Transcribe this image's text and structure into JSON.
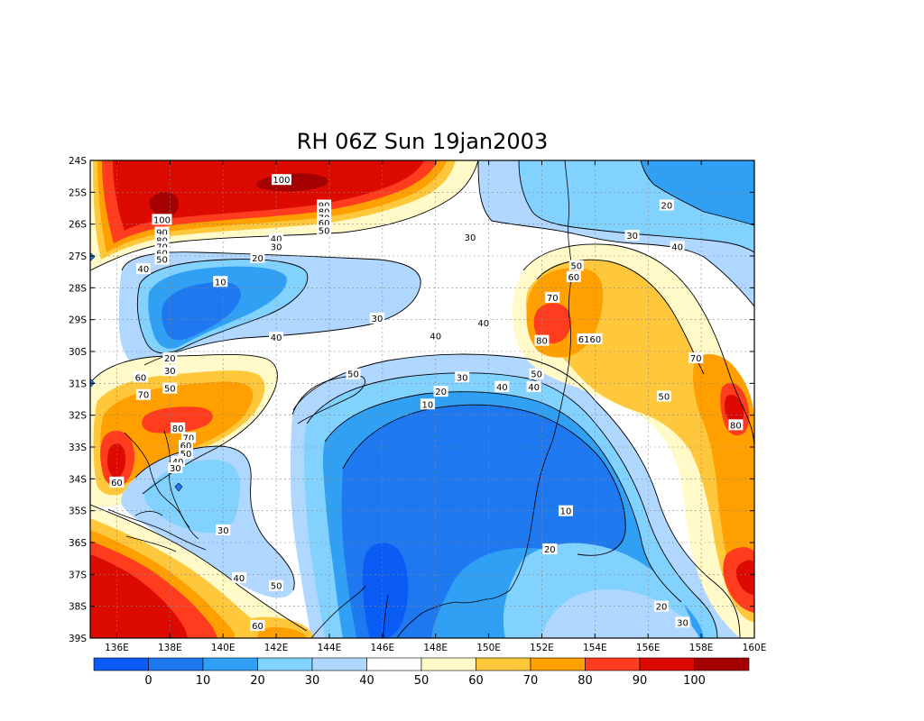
{
  "chart_data": {
    "type": "heatmap",
    "title": "RH 06Z Sun 19jan2003",
    "x_ticks": [
      "136E",
      "138E",
      "140E",
      "142E",
      "144E",
      "146E",
      "148E",
      "150E",
      "152E",
      "154E",
      "156E",
      "158E",
      "160E"
    ],
    "y_ticks": [
      "24S",
      "25S",
      "26S",
      "27S",
      "28S",
      "29S",
      "30S",
      "31S",
      "32S",
      "33S",
      "34S",
      "35S",
      "36S",
      "37S",
      "38S",
      "39S"
    ],
    "x_range": [
      135,
      160
    ],
    "y_range": [
      -39,
      -24
    ],
    "grid": true,
    "color_levels": {
      "bins": [
        "<0",
        "0-10",
        "10-20",
        "20-30",
        "30-40",
        "40-50",
        "50-60",
        "60-70",
        "70-80",
        "80-90",
        "90-100",
        ">100"
      ],
      "colors": [
        "#0a5cf5",
        "#1e78f0",
        "#30a0f5",
        "#82d2ff",
        "#afd7ff",
        "#ffffff",
        "#fffac8",
        "#ffc83c",
        "#ffa000",
        "#ff3c1e",
        "#dc0a00",
        "#a50000"
      ],
      "labels": [
        "0",
        "10",
        "20",
        "30",
        "40",
        "50",
        "60",
        "70",
        "80",
        "90",
        "100"
      ]
    },
    "features": [
      {
        "value": 100,
        "lon": 141.5,
        "lat": -25.3,
        "kind": "max"
      },
      {
        "value": 100,
        "lon": 138.3,
        "lat": -25.8,
        "kind": "max"
      },
      {
        "value": 10,
        "lon": 147.0,
        "lat": -34.0,
        "kind": "min"
      },
      {
        "value": 10,
        "lon": 139.0,
        "lat": -28.5,
        "kind": "min"
      },
      {
        "value": 80,
        "lon": 152.3,
        "lat": -29.0,
        "kind": "max"
      },
      {
        "value": 80,
        "lon": 158.7,
        "lat": -32.3,
        "kind": "max"
      },
      {
        "value": 80,
        "lon": 138.3,
        "lat": -32.0,
        "kind": "max"
      },
      {
        "value": 60,
        "lon": 136.0,
        "lat": -33.0,
        "kind": "max"
      },
      {
        "value": 90,
        "lon": 160.0,
        "lat": -37.0,
        "kind": "max"
      },
      {
        "value": 90,
        "lon": 136.0,
        "lat": -37.5,
        "kind": "max"
      }
    ],
    "contour_labels": [
      {
        "text": "100",
        "lon": 142.2,
        "lat": -24.6
      },
      {
        "text": "90",
        "lon": 143.8,
        "lat": -25.4
      },
      {
        "text": "80",
        "lon": 143.8,
        "lat": -25.6
      },
      {
        "text": "70",
        "lon": 143.8,
        "lat": -25.8
      },
      {
        "text": "60",
        "lon": 143.8,
        "lat": -25.95
      },
      {
        "text": "50",
        "lon": 143.8,
        "lat": -26.2
      },
      {
        "text": "100",
        "lon": 137.7,
        "lat": -25.85
      },
      {
        "text": "90",
        "lon": 137.7,
        "lat": -26.25
      },
      {
        "text": "80",
        "lon": 137.7,
        "lat": -26.5
      },
      {
        "text": "70",
        "lon": 137.7,
        "lat": -26.7
      },
      {
        "text": "60",
        "lon": 137.7,
        "lat": -26.9
      },
      {
        "text": "50",
        "lon": 137.7,
        "lat": -27.1
      },
      {
        "text": "40",
        "lon": 142.0,
        "lat": -26.45
      },
      {
        "text": "30",
        "lon": 142.0,
        "lat": -26.7
      },
      {
        "text": "20",
        "lon": 141.3,
        "lat": -27.05
      },
      {
        "text": "40",
        "lon": 137.0,
        "lat": -27.4
      },
      {
        "text": "10",
        "lon": 139.9,
        "lat": -27.8
      },
      {
        "text": "30",
        "lon": 145.8,
        "lat": -28.95
      },
      {
        "text": "40",
        "lon": 142.0,
        "lat": -29.55
      },
      {
        "text": "40",
        "lon": 148.0,
        "lat": -29.5
      },
      {
        "text": "20",
        "lon": 138.0,
        "lat": -30.2
      },
      {
        "text": "30",
        "lon": 138.0,
        "lat": -30.6
      },
      {
        "text": "50",
        "lon": 144.9,
        "lat": -30.7
      },
      {
        "text": "60",
        "lon": 136.9,
        "lat": -30.8
      },
      {
        "text": "50",
        "lon": 138.0,
        "lat": -31.15
      },
      {
        "text": "70",
        "lon": 137.0,
        "lat": -31.35
      },
      {
        "text": "30",
        "lon": 149.0,
        "lat": -30.8
      },
      {
        "text": "20",
        "lon": 148.2,
        "lat": -31.25
      },
      {
        "text": "10",
        "lon": 147.7,
        "lat": -31.65
      },
      {
        "text": "40",
        "lon": 150.5,
        "lat": -31.1
      },
      {
        "text": "50",
        "lon": 151.8,
        "lat": -30.7
      },
      {
        "text": "40",
        "lon": 151.7,
        "lat": -31.1
      },
      {
        "text": "40",
        "lon": 149.8,
        "lat": -29.1
      },
      {
        "text": "50",
        "lon": 153.3,
        "lat": -27.3
      },
      {
        "text": "60",
        "lon": 153.2,
        "lat": -27.65
      },
      {
        "text": "70",
        "lon": 152.4,
        "lat": -28.3
      },
      {
        "text": "80",
        "lon": 152.0,
        "lat": -29.65
      },
      {
        "text": "6160",
        "lon": 153.8,
        "lat": -29.6
      },
      {
        "text": "70",
        "lon": 157.8,
        "lat": -30.2
      },
      {
        "text": "50",
        "lon": 156.6,
        "lat": -31.4
      },
      {
        "text": "80",
        "lon": 159.3,
        "lat": -32.3
      },
      {
        "text": "20",
        "lon": 156.7,
        "lat": -25.4
      },
      {
        "text": "30",
        "lon": 155.4,
        "lat": -26.35
      },
      {
        "text": "40",
        "lon": 157.1,
        "lat": -26.7
      },
      {
        "text": "30",
        "lon": 149.3,
        "lat": -26.4
      },
      {
        "text": "80",
        "lon": 138.3,
        "lat": -32.4
      },
      {
        "text": "70",
        "lon": 138.7,
        "lat": -32.7
      },
      {
        "text": "60",
        "lon": 138.6,
        "lat": -32.95
      },
      {
        "text": "50",
        "lon": 138.6,
        "lat": -33.2
      },
      {
        "text": "40",
        "lon": 138.3,
        "lat": -33.45
      },
      {
        "text": "30",
        "lon": 138.2,
        "lat": -33.65
      },
      {
        "text": "60",
        "lon": 136.0,
        "lat": -34.1
      },
      {
        "text": "30",
        "lon": 140.0,
        "lat": -35.6
      },
      {
        "text": "40",
        "lon": 140.6,
        "lat": -37.1
      },
      {
        "text": "50",
        "lon": 142.0,
        "lat": -37.35
      },
      {
        "text": "60",
        "lon": 141.3,
        "lat": -38.6
      },
      {
        "text": "10",
        "lon": 152.9,
        "lat": -35.0
      },
      {
        "text": "20",
        "lon": 152.3,
        "lat": -36.2
      },
      {
        "text": "20",
        "lon": 156.5,
        "lat": -38.0
      },
      {
        "text": "30",
        "lon": 157.3,
        "lat": -38.5
      }
    ]
  }
}
